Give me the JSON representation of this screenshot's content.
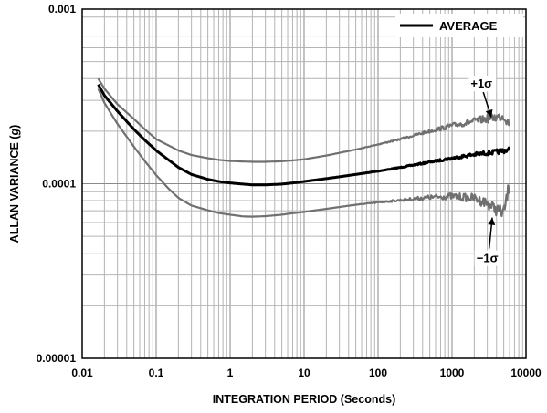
{
  "chart_data": {
    "type": "line",
    "title": "",
    "xlabel": "INTEGRATION PERIOD (Seconds)",
    "ylabel_prefix": "ALLAN VARIANCE (",
    "ylabel_unit": "g",
    "ylabel_suffix": ")",
    "x_scale": "log",
    "y_scale": "log",
    "xlim": [
      0.01,
      10000
    ],
    "ylim": [
      1e-05,
      0.001
    ],
    "x_ticks": [
      "0.01",
      "0.1",
      "1",
      "10",
      "100",
      "1000",
      "10000"
    ],
    "y_ticks": [
      "0.00001",
      "0.0001",
      "0.001"
    ],
    "grid": true,
    "legend": {
      "position": "top-right",
      "entries": [
        "AVERAGE"
      ]
    },
    "annotations": [
      {
        "text": "+1σ",
        "x": 2500,
        "y": 0.000355,
        "arrow_to": [
          3400,
          0.00024
        ]
      },
      {
        "text": "−1σ",
        "x": 3000,
        "y": 3.55e-05,
        "arrow_to": [
          3500,
          6.4e-05
        ]
      }
    ],
    "series": [
      {
        "name": "AVERAGE",
        "color": "#000000",
        "x": [
          0.0165,
          0.02,
          0.03,
          0.05,
          0.07,
          0.1,
          0.15,
          0.2,
          0.3,
          0.5,
          0.7,
          1,
          1.5,
          2,
          3,
          5,
          7,
          10,
          20,
          50,
          100,
          200,
          500,
          1000,
          2000,
          3000,
          4000,
          5000,
          6000
        ],
        "y": [
          0.00037,
          0.00032,
          0.00026,
          0.000205,
          0.000178,
          0.000155,
          0.000136,
          0.000124,
          0.000113,
          0.000106,
          0.000103,
          0.000101,
          9.95e-05,
          9.85e-05,
          9.85e-05,
          9.95e-05,
          0.000101,
          0.000103,
          0.000107,
          0.000113,
          0.000118,
          0.000124,
          0.000133,
          0.00014,
          0.000147,
          0.00015,
          0.000152,
          0.000155,
          0.000156
        ]
      },
      {
        "name": "",
        "color": "#707070",
        "x": [
          0.0165,
          0.02,
          0.03,
          0.05,
          0.07,
          0.1,
          0.15,
          0.2,
          0.3,
          0.5,
          0.7,
          1,
          1.5,
          2,
          3,
          5,
          7,
          10,
          20,
          50,
          100,
          200,
          500,
          1000,
          2000,
          3000,
          4000,
          5000,
          6000
        ],
        "y": [
          0.0004,
          0.00035,
          0.000285,
          0.000235,
          0.000205,
          0.00018,
          0.000165,
          0.000155,
          0.000146,
          0.00014,
          0.000137,
          0.000135,
          0.000134,
          0.0001335,
          0.0001335,
          0.0001345,
          0.000136,
          0.000138,
          0.000145,
          0.000157,
          0.000168,
          0.00018,
          0.0002,
          0.000215,
          0.000228,
          0.000236,
          0.00024,
          0.000245,
          0.00022
        ]
      },
      {
        "name": "",
        "color": "#707070",
        "x": [
          0.0165,
          0.02,
          0.03,
          0.05,
          0.07,
          0.1,
          0.15,
          0.2,
          0.3,
          0.5,
          0.7,
          1,
          1.5,
          2,
          3,
          5,
          7,
          10,
          20,
          50,
          100,
          200,
          500,
          1000,
          2000,
          3000,
          4000,
          5000,
          6000
        ],
        "y": [
          0.00035,
          0.00029,
          0.00022,
          0.000163,
          0.000135,
          0.000112,
          9.3e-05,
          8.3e-05,
          7.5e-05,
          7.05e-05,
          6.8e-05,
          6.65e-05,
          6.5e-05,
          6.48e-05,
          6.52e-05,
          6.65e-05,
          6.78e-05,
          6.9e-05,
          7.18e-05,
          7.58e-05,
          7.82e-05,
          8.05e-05,
          8.35e-05,
          8.48e-05,
          8.25e-05,
          7.75e-05,
          7.1e-05,
          6.8e-05,
          0.0001
        ]
      }
    ]
  }
}
